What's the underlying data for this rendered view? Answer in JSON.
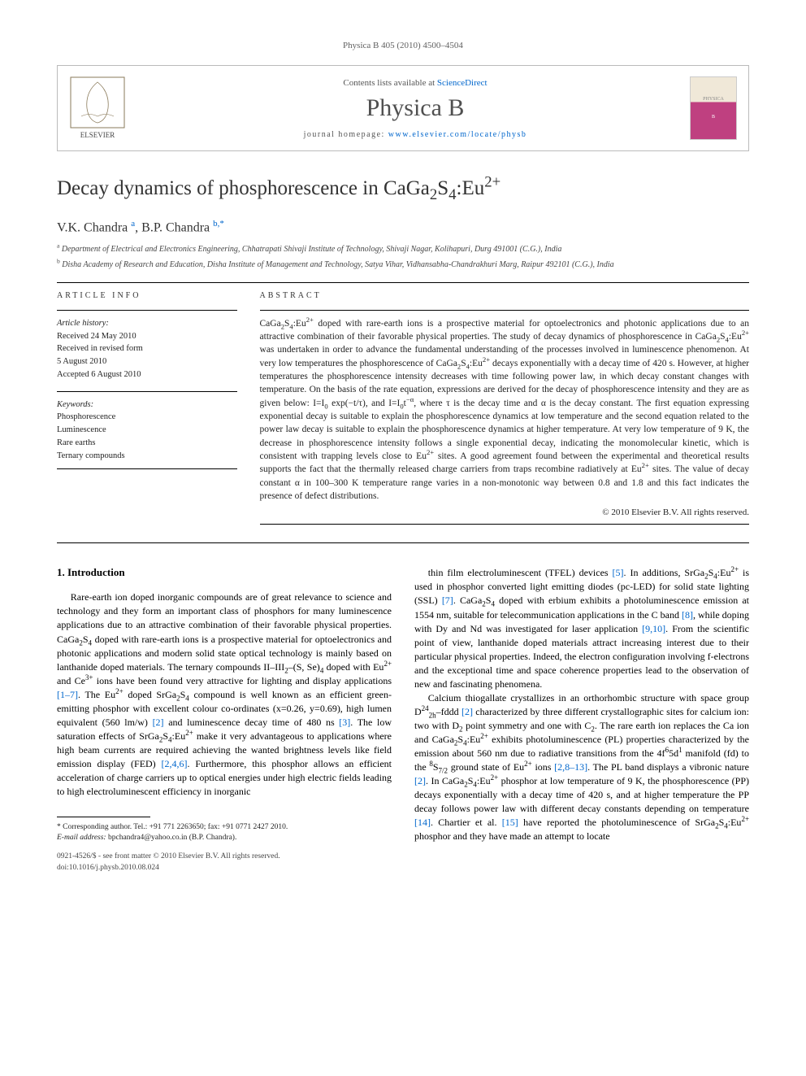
{
  "journal_ref": "Physica B 405 (2010) 4500–4504",
  "header": {
    "contents_prefix": "Contents lists available at ",
    "contents_link": "ScienceDirect",
    "journal_name": "Physica B",
    "homepage_prefix": "journal homepage: ",
    "homepage_url": "www.elsevier.com/locate/physb",
    "elsevier_label": "ELSEVIER",
    "cover_label_top": "PHYSICA",
    "cover_label_mid": "B"
  },
  "title_html": "Decay dynamics of phosphorescence in CaGa<sub>2</sub>S<sub>4</sub>:Eu<sup>2+</sup>",
  "authors": {
    "a1_name": "V.K. Chandra",
    "a1_aff": "a",
    "a2_name": "B.P. Chandra",
    "a2_aff": "b,",
    "corr_mark": "*"
  },
  "affiliations": {
    "a": "Department of Electrical and Electronics Engineering, Chhatrapati Shivaji Institute of Technology, Shivaji Nagar, Kolihapuri, Durg 491001 (C.G.), India",
    "b": "Disha Academy of Research and Education, Disha Institute of Management and Technology, Satya Vihar, Vidhansabha-Chandrakhuri Marg, Raipur 492101 (C.G.), India"
  },
  "article_info": {
    "label": "ARTICLE INFO",
    "history_label": "Article history:",
    "received": "Received 24 May 2010",
    "revised1": "Received in revised form",
    "revised2": "5 August 2010",
    "accepted": "Accepted 6 August 2010",
    "keywords_label": "Keywords:",
    "keywords": [
      "Phosphorescence",
      "Luminescence",
      "Rare earths",
      "Ternary compounds"
    ]
  },
  "abstract": {
    "label": "ABSTRACT",
    "text_html": "CaGa<sub>2</sub>S<sub>4</sub>:Eu<sup>2+</sup> doped with rare-earth ions is a prospective material for optoelectronics and photonic applications due to an attractive combination of their favorable physical properties. The study of decay dynamics of phosphorescence in CaGa<sub>2</sub>S<sub>4</sub>:Eu<sup>2+</sup> was undertaken in order to advance the fundamental understanding of the processes involved in luminescence phenomenon. At very low temperatures the phosphorescence of CaGa<sub>2</sub>S<sub>4</sub>:Eu<sup>2+</sup> decays exponentially with a decay time of 420 s. However, at higher temperatures the phosphorescence intensity decreases with time following power law, in which decay constant changes with temperature. On the basis of the rate equation, expressions are derived for the decay of phosphorescence intensity and they are as given below: I=I<sub>0</sub> exp(−t/τ), and I=I<sub>0</sub>t<sup>−α</sup>, where τ is the decay time and α is the decay constant. The first equation expressing exponential decay is suitable to explain the phosphorescence dynamics at low temperature and the second equation related to the power law decay is suitable to explain the phosphorescence dynamics at higher temperature. At very low temperature of 9 K, the decrease in phosphorescence intensity follows a single exponential decay, indicating the monomolecular kinetic, which is consistent with trapping levels close to Eu<sup>2+</sup> sites. A good agreement found between the experimental and theoretical results supports the fact that the thermally released charge carriers from traps recombine radiatively at Eu<sup>2+</sup> sites. The value of decay constant α in 100–300 K temperature range varies in a non-monotonic way between 0.8 and 1.8 and this fact indicates the presence of defect distributions.",
    "copyright": "© 2010 Elsevier B.V. All rights reserved."
  },
  "body": {
    "heading": "1. Introduction",
    "col1_html": "Rare-earth ion doped inorganic compounds are of great relevance to science and technology and they form an important class of phosphors for many luminescence applications due to an attractive combination of their favorable physical properties. CaGa<sub>2</sub>S<sub>4</sub> doped with rare-earth ions is a prospective material for optoelectronics and photonic applications and modern solid state optical technology is mainly based on lanthanide doped materials. The ternary compounds II–III<sub>2</sub>–(S, Se)<sub>4</sub> doped with Eu<sup>2+</sup> and Ce<sup>3+</sup> ions have been found very attractive for lighting and display applications <a href='#'>[1–7]</a>. The Eu<sup>2+</sup> doped SrGa<sub>2</sub>S<sub>4</sub> compound is well known as an efficient green-emitting phosphor with excellent colour co-ordinates (x=0.26, y=0.69), high lumen equivalent (560 lm/w) <a href='#'>[2]</a> and luminescence decay time of 480 ns <a href='#'>[3]</a>. The low saturation effects of SrGa<sub>2</sub>S<sub>4</sub>:Eu<sup>2+</sup> make it very advantageous to applications where high beam currents are required achieving the wanted brightness levels like field emission display (FED) <a href='#'>[2,4,6]</a>. Furthermore, this phosphor allows an efficient acceleration of charge carriers up to optical energies under high electric fields leading to high electroluminescent efficiency in inorganic",
    "col2_html": "thin film electroluminescent (TFEL) devices <a href='#'>[5]</a>. In additions, SrGa<sub>2</sub>S<sub>4</sub>:Eu<sup>2+</sup> is used in phosphor converted light emitting diodes (pc-LED) for solid state lighting (SSL) <a href='#'>[7]</a>. CaGa<sub>2</sub>S<sub>4</sub> doped with erbium exhibits a photoluminescence emission at 1554 nm, suitable for telecommunication applications in the C band <a href='#'>[8]</a>, while doping with Dy and Nd was investigated for laser application <a href='#'>[9,10]</a>. From the scientific point of view, lanthanide doped materials attract increasing interest due to their particular physical properties. Indeed, the electron configuration involving f-electrons and the exceptional time and space coherence properties lead to the observation of new and fascinating phenomena.</p><p>Calcium thiogallate crystallizes in an orthorhombic structure with space group D<sup>24</sup><sub>2h</sub>–fddd <a href='#'>[2]</a> characterized by three different crystallographic sites for calcium ion: two with D<sub>2</sub> point symmetry and one with C<sub>2</sub>. The rare earth ion replaces the Ca ion and CaGa<sub>2</sub>S<sub>4</sub>:Eu<sup>2+</sup> exhibits photoluminescence (PL) properties characterized by the emission about 560 nm due to radiative transitions from the 4f<sup>6</sup>5d<sup>1</sup> manifold (fd) to the <sup>8</sup>S<sub>7/2</sub> ground state of Eu<sup>2+</sup> ions <a href='#'>[2,8–13]</a>. The PL band displays a vibronic nature <a href='#'>[2]</a>. In CaGa<sub>2</sub>S<sub>4</sub>:Eu<sup>2+</sup> phosphor at low temperature of 9 K, the phosphorescence (PP) decays exponentially with a decay time of 420 s, and at higher temperature the PP decay follows power law with different decay constants depending on temperature <a href='#'>[14]</a>. Chartier et al. <a href='#'>[15]</a> have reported the photoluminescence of SrGa<sub>2</sub>S<sub>4</sub>:Eu<sup>2+</sup> phosphor and they have made an attempt to locate"
  },
  "footnote": {
    "corr_label": "* Corresponding author. ",
    "corr_text": "Tel.: +91 771 2263650; fax: +91 0771 2427 2010.",
    "email_label": "E-mail address: ",
    "email": "bpchandra4@yahoo.co.in (B.P. Chandra)."
  },
  "doi": {
    "line1": "0921-4526/$ - see front matter © 2010 Elsevier B.V. All rights reserved.",
    "line2": "doi:10.1016/j.physb.2010.08.024"
  }
}
